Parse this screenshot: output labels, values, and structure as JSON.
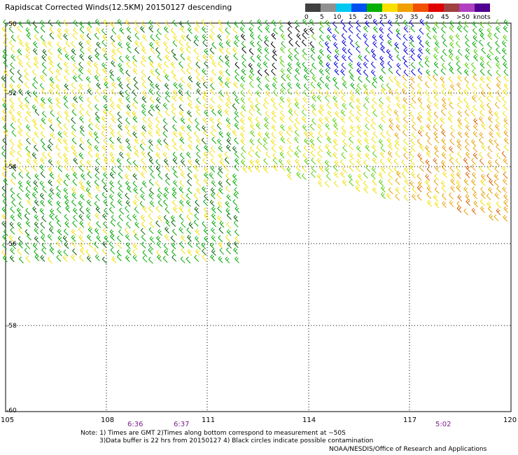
{
  "title": "Rapidscat Corrected Winds(12.5KM) 20150127 descending",
  "legend": {
    "units": "knots",
    "bins": [
      {
        "label": "0",
        "color": "#404040"
      },
      {
        "label": "5",
        "color": "#909090"
      },
      {
        "label": "10",
        "color": "#00c8f0"
      },
      {
        "label": "15",
        "color": "#0050f0"
      },
      {
        "label": "20",
        "color": "#00b000"
      },
      {
        "label": "25",
        "color": "#f8e000"
      },
      {
        "label": "30",
        "color": "#f0a000"
      },
      {
        "label": "35",
        "color": "#f05000"
      },
      {
        "label": "40",
        "color": "#e00000"
      },
      {
        "label": "45",
        "color": "#a04040"
      },
      {
        "label": ">50",
        "color": "#b040c0"
      },
      {
        "label": "",
        "color": "#500090"
      }
    ]
  },
  "map": {
    "lat_labels": [
      "-50",
      "-52",
      "-54",
      "-56",
      "-58",
      "-60"
    ],
    "lon_labels": [
      "105",
      "108",
      "111",
      "114",
      "117",
      "120"
    ],
    "time_labels": [
      "6:36",
      "6:37",
      "5:02"
    ],
    "wind_colors": {
      "green": "#00aa00",
      "dark_green": "#006000",
      "light_green": "#50d000",
      "yellow": "#f0e000",
      "light_yellow": "#ffff40",
      "orange": "#e8a000",
      "dark_orange": "#d86000",
      "blue": "#0000e0",
      "black": "#000000"
    }
  },
  "notes": {
    "line1": "Note: 1) Times are GMT 2)Times along bottom correspond to measurement at ~50S",
    "line2": "3)Data buffer is 22 hrs from 20150127 4) Black circles indicate possible contamination",
    "credit": "NOAA/NESDIS/Office of Research and Applications"
  }
}
